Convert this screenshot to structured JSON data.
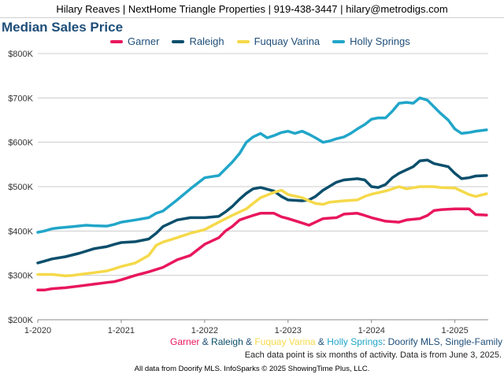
{
  "header": {
    "contact": "Hilary Reaves | NextHome Triangle Properties | 919-438-3447 | hilary@metrodigs.com"
  },
  "subtitle": {
    "parts": [
      {
        "text": "Garner",
        "color": "#e8175d"
      },
      {
        "text": " & ",
        "color": "#1f4e79"
      },
      {
        "text": "Raleigh",
        "color": "#0b4f6c"
      },
      {
        "text": " & ",
        "color": "#1f4e79"
      },
      {
        "text": "Fuquay Varina",
        "color": "#f5d94a"
      },
      {
        "text": " & ",
        "color": "#1f4e79"
      },
      {
        "text": "Holly Springs",
        "color": "#21a6c9"
      },
      {
        "text": ": Doorify MLS, Single-Family",
        "color": "#1f4e79"
      }
    ]
  },
  "note": "Each data point is six months of activity. Data is from June 3, 2025.",
  "footer": "All data from Doorify MLS. InfoSparks © 2025 ShowingTime Plus, LLC.",
  "chart_data": {
    "type": "line",
    "title": "Median Sales Price",
    "xlabel": "",
    "ylabel": "",
    "ylim": [
      200000,
      800000
    ],
    "yticks": [
      200000,
      300000,
      400000,
      500000,
      600000,
      700000,
      800000
    ],
    "ytick_labels": [
      "$200K",
      "$300K",
      "$400K",
      "$500K",
      "$600K",
      "$700K",
      "$800K"
    ],
    "xlim": [
      2020.0,
      2025.4
    ],
    "xticks": [
      2020,
      2021,
      2022,
      2023,
      2024,
      2025
    ],
    "xtick_labels": [
      "1-2020",
      "1-2021",
      "1-2022",
      "1-2023",
      "1-2024",
      "1-2025"
    ],
    "grid": "horizontal",
    "legend_position": "top",
    "series": [
      {
        "name": "Garner",
        "color": "#e8175d",
        "points": [
          [
            2020.0,
            267000
          ],
          [
            2020.08,
            267000
          ],
          [
            2020.17,
            270000
          ],
          [
            2020.33,
            272000
          ],
          [
            2020.5,
            276000
          ],
          [
            2020.67,
            280000
          ],
          [
            2020.83,
            284000
          ],
          [
            2020.92,
            286000
          ],
          [
            2021.0,
            290000
          ],
          [
            2021.17,
            300000
          ],
          [
            2021.33,
            308000
          ],
          [
            2021.5,
            318000
          ],
          [
            2021.67,
            335000
          ],
          [
            2021.83,
            345000
          ],
          [
            2022.0,
            370000
          ],
          [
            2022.17,
            385000
          ],
          [
            2022.25,
            400000
          ],
          [
            2022.33,
            410000
          ],
          [
            2022.42,
            425000
          ],
          [
            2022.5,
            430000
          ],
          [
            2022.58,
            435000
          ],
          [
            2022.67,
            440000
          ],
          [
            2022.83,
            440000
          ],
          [
            2022.92,
            432000
          ],
          [
            2023.0,
            428000
          ],
          [
            2023.17,
            418000
          ],
          [
            2023.25,
            413000
          ],
          [
            2023.33,
            420000
          ],
          [
            2023.42,
            428000
          ],
          [
            2023.58,
            430000
          ],
          [
            2023.67,
            438000
          ],
          [
            2023.83,
            440000
          ],
          [
            2023.92,
            435000
          ],
          [
            2024.0,
            430000
          ],
          [
            2024.17,
            422000
          ],
          [
            2024.33,
            420000
          ],
          [
            2024.42,
            425000
          ],
          [
            2024.58,
            428000
          ],
          [
            2024.67,
            435000
          ],
          [
            2024.75,
            446000
          ],
          [
            2024.83,
            448000
          ],
          [
            2025.0,
            450000
          ],
          [
            2025.17,
            450000
          ],
          [
            2025.25,
            437000
          ],
          [
            2025.38,
            436000
          ]
        ]
      },
      {
        "name": "Raleigh",
        "color": "#0b4f6c",
        "points": [
          [
            2020.0,
            328000
          ],
          [
            2020.08,
            332000
          ],
          [
            2020.17,
            337000
          ],
          [
            2020.33,
            342000
          ],
          [
            2020.5,
            350000
          ],
          [
            2020.67,
            360000
          ],
          [
            2020.83,
            365000
          ],
          [
            2020.92,
            370000
          ],
          [
            2021.0,
            374000
          ],
          [
            2021.17,
            376000
          ],
          [
            2021.33,
            382000
          ],
          [
            2021.42,
            395000
          ],
          [
            2021.5,
            410000
          ],
          [
            2021.67,
            425000
          ],
          [
            2021.83,
            430000
          ],
          [
            2022.0,
            430000
          ],
          [
            2022.17,
            433000
          ],
          [
            2022.25,
            443000
          ],
          [
            2022.33,
            455000
          ],
          [
            2022.42,
            472000
          ],
          [
            2022.5,
            485000
          ],
          [
            2022.58,
            495000
          ],
          [
            2022.67,
            498000
          ],
          [
            2022.83,
            490000
          ],
          [
            2022.92,
            478000
          ],
          [
            2023.0,
            470000
          ],
          [
            2023.17,
            468000
          ],
          [
            2023.25,
            470000
          ],
          [
            2023.33,
            478000
          ],
          [
            2023.42,
            492000
          ],
          [
            2023.58,
            510000
          ],
          [
            2023.67,
            515000
          ],
          [
            2023.83,
            518000
          ],
          [
            2023.92,
            515000
          ],
          [
            2024.0,
            500000
          ],
          [
            2024.08,
            498000
          ],
          [
            2024.17,
            505000
          ],
          [
            2024.25,
            520000
          ],
          [
            2024.33,
            530000
          ],
          [
            2024.5,
            545000
          ],
          [
            2024.58,
            558000
          ],
          [
            2024.67,
            560000
          ],
          [
            2024.75,
            552000
          ],
          [
            2024.92,
            545000
          ],
          [
            2025.0,
            530000
          ],
          [
            2025.08,
            518000
          ],
          [
            2025.17,
            520000
          ],
          [
            2025.25,
            524000
          ],
          [
            2025.38,
            525000
          ]
        ]
      },
      {
        "name": "Fuquay Varina",
        "color": "#f5d94a",
        "points": [
          [
            2020.0,
            302000
          ],
          [
            2020.17,
            302000
          ],
          [
            2020.33,
            299000
          ],
          [
            2020.42,
            300000
          ],
          [
            2020.5,
            302000
          ],
          [
            2020.67,
            306000
          ],
          [
            2020.83,
            310000
          ],
          [
            2020.92,
            315000
          ],
          [
            2021.0,
            320000
          ],
          [
            2021.17,
            328000
          ],
          [
            2021.33,
            345000
          ],
          [
            2021.42,
            368000
          ],
          [
            2021.5,
            375000
          ],
          [
            2021.67,
            385000
          ],
          [
            2021.83,
            395000
          ],
          [
            2022.0,
            403000
          ],
          [
            2022.17,
            420000
          ],
          [
            2022.33,
            435000
          ],
          [
            2022.5,
            450000
          ],
          [
            2022.58,
            462000
          ],
          [
            2022.67,
            475000
          ],
          [
            2022.83,
            487000
          ],
          [
            2022.92,
            492000
          ],
          [
            2023.0,
            482000
          ],
          [
            2023.17,
            475000
          ],
          [
            2023.25,
            468000
          ],
          [
            2023.33,
            462000
          ],
          [
            2023.42,
            460000
          ],
          [
            2023.5,
            465000
          ],
          [
            2023.67,
            468000
          ],
          [
            2023.83,
            470000
          ],
          [
            2023.92,
            478000
          ],
          [
            2024.0,
            483000
          ],
          [
            2024.17,
            490000
          ],
          [
            2024.33,
            500000
          ],
          [
            2024.42,
            495000
          ],
          [
            2024.58,
            500000
          ],
          [
            2024.75,
            500000
          ],
          [
            2024.83,
            498000
          ],
          [
            2025.0,
            497000
          ],
          [
            2025.08,
            490000
          ],
          [
            2025.17,
            482000
          ],
          [
            2025.25,
            478000
          ],
          [
            2025.38,
            484000
          ]
        ]
      },
      {
        "name": "Holly Springs",
        "color": "#21a6c9",
        "points": [
          [
            2020.0,
            397000
          ],
          [
            2020.08,
            400000
          ],
          [
            2020.17,
            405000
          ],
          [
            2020.25,
            407000
          ],
          [
            2020.42,
            410000
          ],
          [
            2020.58,
            413000
          ],
          [
            2020.67,
            412000
          ],
          [
            2020.83,
            411000
          ],
          [
            2020.92,
            415000
          ],
          [
            2021.0,
            420000
          ],
          [
            2021.17,
            425000
          ],
          [
            2021.33,
            430000
          ],
          [
            2021.42,
            440000
          ],
          [
            2021.5,
            445000
          ],
          [
            2021.67,
            470000
          ],
          [
            2021.83,
            495000
          ],
          [
            2022.0,
            520000
          ],
          [
            2022.17,
            525000
          ],
          [
            2022.25,
            540000
          ],
          [
            2022.33,
            555000
          ],
          [
            2022.42,
            575000
          ],
          [
            2022.5,
            600000
          ],
          [
            2022.58,
            612000
          ],
          [
            2022.67,
            620000
          ],
          [
            2022.75,
            610000
          ],
          [
            2022.83,
            615000
          ],
          [
            2022.92,
            622000
          ],
          [
            2023.0,
            625000
          ],
          [
            2023.08,
            620000
          ],
          [
            2023.17,
            625000
          ],
          [
            2023.25,
            618000
          ],
          [
            2023.33,
            610000
          ],
          [
            2023.42,
            600000
          ],
          [
            2023.5,
            603000
          ],
          [
            2023.58,
            608000
          ],
          [
            2023.67,
            612000
          ],
          [
            2023.75,
            620000
          ],
          [
            2023.83,
            630000
          ],
          [
            2023.92,
            640000
          ],
          [
            2024.0,
            652000
          ],
          [
            2024.08,
            655000
          ],
          [
            2024.17,
            655000
          ],
          [
            2024.25,
            670000
          ],
          [
            2024.33,
            688000
          ],
          [
            2024.42,
            690000
          ],
          [
            2024.5,
            688000
          ],
          [
            2024.58,
            700000
          ],
          [
            2024.67,
            695000
          ],
          [
            2024.75,
            680000
          ],
          [
            2024.83,
            665000
          ],
          [
            2024.92,
            650000
          ],
          [
            2025.0,
            630000
          ],
          [
            2025.08,
            620000
          ],
          [
            2025.17,
            622000
          ],
          [
            2025.25,
            625000
          ],
          [
            2025.38,
            628000
          ]
        ]
      }
    ]
  }
}
